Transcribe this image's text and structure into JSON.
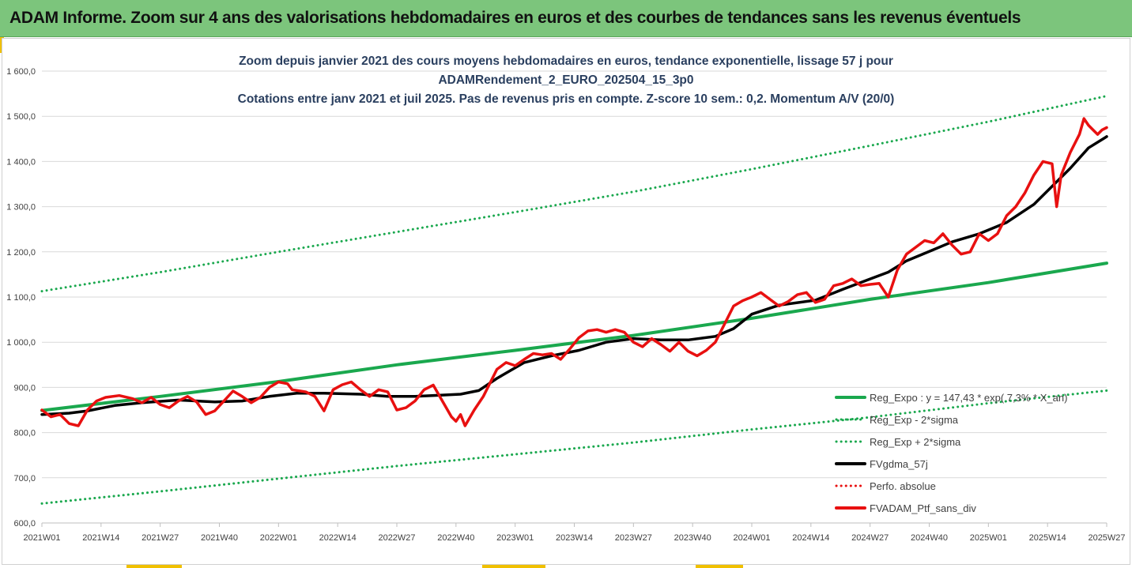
{
  "banner": {
    "title": "ADAM Informe. Zoom sur 4 ans des valorisations hebdomadaires en euros et des courbes de tendances sans les revenus éventuels"
  },
  "colors": {
    "banner_bg": "#7cc57c",
    "trend": "#1aa84e",
    "smooth": "#000000",
    "portfolio": "#e81010",
    "perf_absolue": "#e81010"
  },
  "chart_data": {
    "type": "line",
    "title_lines": [
      "Zoom depuis janvier 2021 des cours moyens hebdomadaires  en euros, tendance exponentielle, lissage 57 j pour",
      "ADAMRendement_2_EURO_202504_15_3p0",
      "Cotations entre janv 2021 et juil 2025. Pas de revenus pris en compte. Z-score 10 sem.: 0,2. Momentum A/V (20/0)"
    ],
    "xlabel": "",
    "ylabel": "",
    "ylim": [
      600,
      1600
    ],
    "grid": "horizontal",
    "legend_position": "bottom-right",
    "y_ticks": [
      "600,0",
      "700,0",
      "800,0",
      "900,0",
      "1 000,0",
      "1 100,0",
      "1 200,0",
      "1 300,0",
      "1 400,0",
      "1 500,0",
      "1 600,0"
    ],
    "x_ticks": [
      "2021W01",
      "2021W14",
      "2021W27",
      "2021W40",
      "2022W01",
      "2022W14",
      "2022W27",
      "2022W40",
      "2023W01",
      "2023W14",
      "2023W27",
      "2023W40",
      "2024W01",
      "2024W14",
      "2024W27",
      "2024W40",
      "2025W01",
      "2025W14",
      "2025W27"
    ],
    "x_tick_weeks": [
      0,
      13,
      26,
      39,
      52,
      65,
      78,
      91,
      104,
      117,
      130,
      143,
      156,
      169,
      182,
      195,
      208,
      221,
      234
    ],
    "x_range": [
      0,
      234
    ],
    "series": [
      {
        "name": "Reg_Expo : y = 147,43 * exp( 7,3% * X_an)",
        "style": "solid-thick",
        "color": "#1aa84e",
        "x": [
          0,
          26,
          52,
          78,
          104,
          130,
          156,
          182,
          208,
          234
        ],
        "values": [
          849,
          880,
          913,
          950,
          982,
          1015,
          1053,
          1095,
          1132,
          1175
        ]
      },
      {
        "name": "Reg_Exp - 2*sigma",
        "style": "dotted",
        "color": "#1aa84e",
        "x": [
          0,
          26,
          52,
          78,
          104,
          130,
          156,
          182,
          208,
          234
        ],
        "values": [
          643,
          670,
          698,
          726,
          752,
          778,
          807,
          834,
          865,
          893
        ]
      },
      {
        "name": "Reg_Exp + 2*sigma",
        "style": "dotted",
        "color": "#1aa84e",
        "x": [
          0,
          26,
          52,
          78,
          104,
          130,
          156,
          182,
          208,
          234
        ],
        "values": [
          1113,
          1155,
          1200,
          1244,
          1288,
          1333,
          1383,
          1435,
          1488,
          1545
        ]
      },
      {
        "name": "FVgdma_57j",
        "style": "solid-thick",
        "color": "#000000",
        "x": [
          0,
          6,
          10,
          16,
          22,
          30,
          38,
          44,
          50,
          56,
          62,
          70,
          76,
          82,
          88,
          92,
          96,
          100,
          106,
          112,
          118,
          124,
          130,
          136,
          142,
          148,
          152,
          156,
          162,
          170,
          176,
          182,
          186,
          190,
          196,
          200,
          206,
          212,
          218,
          222,
          226,
          230,
          234
        ],
        "values": [
          840,
          843,
          848,
          860,
          866,
          872,
          868,
          870,
          880,
          887,
          887,
          885,
          880,
          880,
          883,
          885,
          893,
          920,
          955,
          970,
          982,
          1000,
          1008,
          1005,
          1005,
          1013,
          1030,
          1062,
          1082,
          1093,
          1117,
          1140,
          1155,
          1180,
          1205,
          1222,
          1240,
          1265,
          1305,
          1345,
          1385,
          1430,
          1455
        ]
      },
      {
        "name": "Perfo. absolue",
        "style": "dotted",
        "color": "#e81010",
        "x": [],
        "values": []
      },
      {
        "name": "FVADAM_Ptf_sans_div",
        "style": "solid-thick",
        "color": "#e81010",
        "x": [
          0,
          2,
          4,
          6,
          8,
          10,
          12,
          14,
          17,
          20,
          22,
          24,
          26,
          28,
          30,
          32,
          34,
          36,
          38,
          40,
          42,
          44,
          46,
          48,
          50,
          52,
          54,
          55,
          58,
          60,
          62,
          64,
          66,
          68,
          70,
          72,
          74,
          76,
          78,
          80,
          82,
          84,
          86,
          88,
          90,
          91,
          92,
          93,
          95,
          97,
          100,
          102,
          104,
          106,
          108,
          110,
          112,
          114,
          116,
          118,
          120,
          122,
          124,
          126,
          128,
          130,
          132,
          134,
          136,
          138,
          140,
          142,
          144,
          146,
          148,
          150,
          152,
          154,
          156,
          158,
          160,
          162,
          164,
          166,
          168,
          170,
          172,
          174,
          176,
          178,
          180,
          182,
          184,
          186,
          188,
          190,
          192,
          194,
          196,
          198,
          200,
          202,
          204,
          206,
          208,
          210,
          212,
          214,
          216,
          218,
          220,
          222,
          223,
          224,
          226,
          228,
          229,
          230,
          231,
          232,
          233,
          234
        ],
        "values": [
          850,
          835,
          840,
          820,
          815,
          850,
          870,
          878,
          882,
          875,
          866,
          878,
          862,
          855,
          870,
          880,
          868,
          840,
          848,
          870,
          892,
          880,
          866,
          878,
          900,
          912,
          908,
          895,
          890,
          880,
          848,
          895,
          906,
          912,
          895,
          880,
          895,
          890,
          850,
          855,
          870,
          895,
          905,
          870,
          835,
          825,
          840,
          815,
          850,
          880,
          940,
          955,
          948,
          962,
          975,
          972,
          975,
          962,
          985,
          1010,
          1025,
          1028,
          1022,
          1028,
          1022,
          1000,
          990,
          1008,
          995,
          980,
          1000,
          980,
          970,
          982,
          1000,
          1040,
          1080,
          1092,
          1100,
          1110,
          1095,
          1080,
          1090,
          1105,
          1110,
          1088,
          1095,
          1125,
          1130,
          1140,
          1125,
          1128,
          1130,
          1100,
          1160,
          1195,
          1210,
          1225,
          1220,
          1240,
          1215,
          1195,
          1200,
          1240,
          1225,
          1240,
          1280,
          1300,
          1330,
          1370,
          1400,
          1395,
          1300,
          1370,
          1420,
          1460,
          1495,
          1480,
          1470,
          1460,
          1470,
          1475
        ]
      }
    ]
  }
}
